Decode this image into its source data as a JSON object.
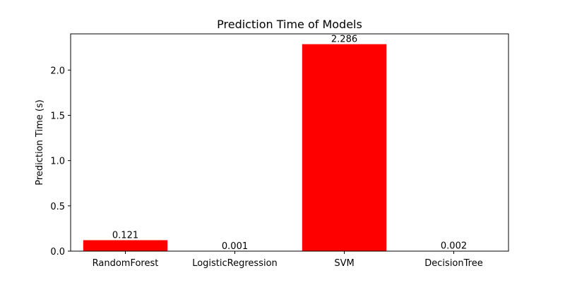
{
  "chart_data": {
    "type": "bar",
    "title": "Prediction Time of Models",
    "xlabel": "",
    "ylabel": "Prediction Time (s)",
    "categories": [
      "RandomForest",
      "LogisticRegression",
      "SVM",
      "DecisionTree"
    ],
    "values": [
      0.121,
      0.001,
      2.286,
      0.002
    ],
    "value_labels": [
      "0.121",
      "0.001",
      "2.286",
      "0.002"
    ],
    "ylim": [
      0,
      2.4
    ],
    "yticks": [
      0.0,
      0.5,
      1.0,
      1.5,
      2.0
    ],
    "ytick_labels": [
      "0.0",
      "0.5",
      "1.0",
      "1.5",
      "2.0"
    ],
    "bar_color": "#ff0000",
    "grid": false,
    "legend": "none"
  }
}
